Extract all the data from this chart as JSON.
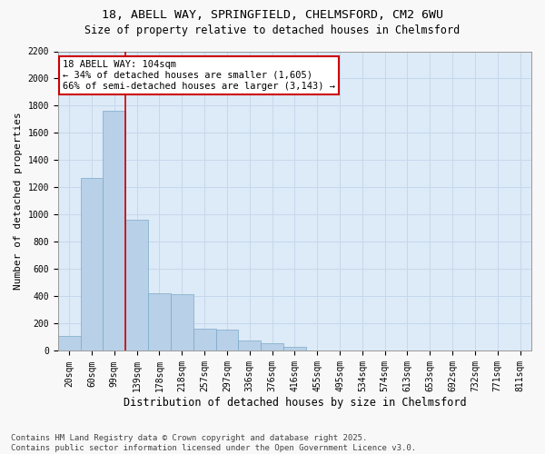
{
  "title_line1": "18, ABELL WAY, SPRINGFIELD, CHELMSFORD, CM2 6WU",
  "title_line2": "Size of property relative to detached houses in Chelmsford",
  "xlabel": "Distribution of detached houses by size in Chelmsford",
  "ylabel": "Number of detached properties",
  "categories": [
    "20sqm",
    "60sqm",
    "99sqm",
    "139sqm",
    "178sqm",
    "218sqm",
    "257sqm",
    "297sqm",
    "336sqm",
    "376sqm",
    "416sqm",
    "455sqm",
    "495sqm",
    "534sqm",
    "574sqm",
    "613sqm",
    "653sqm",
    "692sqm",
    "732sqm",
    "771sqm",
    "811sqm"
  ],
  "values": [
    110,
    1270,
    1760,
    960,
    420,
    415,
    160,
    155,
    75,
    55,
    30,
    5,
    0,
    0,
    0,
    0,
    0,
    0,
    0,
    0,
    0
  ],
  "bar_color": "#b8d0e8",
  "bar_edge_color": "#7aaac8",
  "grid_color": "#c5d8ec",
  "bg_color": "#ddeaf7",
  "property_line_color": "#cc0000",
  "annotation_text": "18 ABELL WAY: 104sqm\n← 34% of detached houses are smaller (1,605)\n66% of semi-detached houses are larger (3,143) →",
  "annotation_box_color": "#ffffff",
  "annotation_box_edge": "#cc0000",
  "ylim": [
    0,
    2200
  ],
  "yticks": [
    0,
    200,
    400,
    600,
    800,
    1000,
    1200,
    1400,
    1600,
    1800,
    2000,
    2200
  ],
  "footnote": "Contains HM Land Registry data © Crown copyright and database right 2025.\nContains public sector information licensed under the Open Government Licence v3.0.",
  "title_fontsize": 9.5,
  "subtitle_fontsize": 8.5,
  "axis_label_fontsize": 8,
  "tick_fontsize": 7,
  "annotation_fontsize": 7.5,
  "footnote_fontsize": 6.5
}
